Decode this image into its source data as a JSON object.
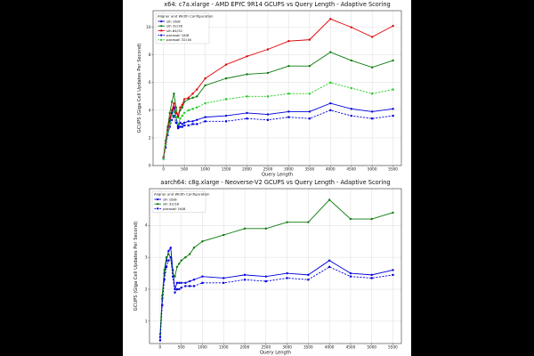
{
  "chart_data": [
    {
      "type": "line",
      "title": "x64: c7a.xlarge - AMD EPYC 9R14 GCUPS vs Query Length - Adaptive Scoring",
      "xlabel": "Query Length",
      "ylabel": "GCUPS (Giga Cell Updates Per Second)",
      "xlim": [
        -250,
        5700
      ],
      "ylim": [
        0,
        11.2
      ],
      "xticks": [
        0,
        500,
        1000,
        1500,
        2000,
        2500,
        3000,
        3500,
        4000,
        4500,
        5000,
        5500
      ],
      "yticks": [
        0,
        2,
        4,
        6,
        8,
        10
      ],
      "grid": true,
      "legend_title": "Aligner and Width Configuration",
      "legend_location": "top-left",
      "x": [
        1,
        50,
        100,
        150,
        200,
        250,
        300,
        350,
        400,
        450,
        500,
        600,
        700,
        800,
        1000,
        1500,
        2000,
        2500,
        3000,
        3500,
        4000,
        4500,
        5000,
        5500
      ],
      "series": [
        {
          "name": "sih 16/8",
          "color": "#0000dd",
          "style": "solid",
          "marker": "circle",
          "values": [
            0.5,
            1.5,
            2.5,
            3.2,
            3.8,
            4.2,
            3.5,
            2.8,
            3.1,
            3.0,
            3.1,
            3.2,
            3.2,
            3.3,
            3.5,
            3.6,
            3.8,
            3.7,
            3.9,
            3.9,
            4.5,
            4.1,
            3.9,
            4.1
          ]
        },
        {
          "name": "sih 32/16",
          "color": "#0a7a0a",
          "style": "solid",
          "marker": "circle",
          "values": [
            0.6,
            1.8,
            2.8,
            3.8,
            4.6,
            5.2,
            4.2,
            3.5,
            4.0,
            4.2,
            4.6,
            4.8,
            4.9,
            5.0,
            5.8,
            6.3,
            6.6,
            6.7,
            7.2,
            7.2,
            8.2,
            7.6,
            7.1,
            7.6
          ]
        },
        {
          "name": "sih 64/32",
          "color": "#e00000",
          "style": "solid",
          "marker": "circle",
          "values": [
            0.6,
            1.6,
            2.6,
            3.4,
            4.0,
            4.5,
            3.8,
            3.6,
            4.2,
            4.4,
            4.8,
            4.9,
            5.2,
            5.5,
            6.3,
            7.3,
            7.9,
            8.4,
            9.0,
            9.1,
            10.6,
            10.0,
            9.3,
            10.1
          ]
        },
        {
          "name": "parasail 16/8",
          "color": "#0000dd",
          "style": "dashed",
          "marker": "square",
          "values": [
            0.5,
            1.3,
            2.2,
            2.8,
            3.3,
            3.6,
            3.1,
            2.7,
            2.8,
            2.8,
            2.9,
            2.9,
            3.0,
            3.0,
            3.2,
            3.2,
            3.4,
            3.3,
            3.5,
            3.4,
            4.0,
            3.6,
            3.4,
            3.6
          ]
        },
        {
          "name": "parasail 32/16",
          "color": "#22cc22",
          "style": "dashed",
          "marker": "square",
          "values": [
            0.5,
            1.5,
            2.4,
            3.0,
            3.6,
            3.9,
            3.5,
            3.0,
            3.4,
            3.6,
            3.8,
            4.0,
            4.1,
            4.2,
            4.5,
            4.8,
            5.0,
            5.0,
            5.2,
            5.2,
            6.0,
            5.6,
            5.2,
            5.5
          ]
        }
      ]
    },
    {
      "type": "line",
      "title": "aarch64: c8g.xlarge - Neoverse-V2 GCUPS vs Query Length - Adaptive Scoring",
      "xlabel": "Query Length",
      "ylabel": "GCUPS (Giga Cell Updates Per Second)",
      "xlim": [
        -250,
        5700
      ],
      "ylim": [
        0.3,
        5.15
      ],
      "xticks": [
        0,
        500,
        1000,
        1500,
        2000,
        2500,
        3000,
        3500,
        4000,
        4500,
        5000,
        5500
      ],
      "yticks": [
        1,
        2,
        3,
        4
      ],
      "grid": true,
      "legend_title": "Aligner and Width Configuration",
      "legend_location": "top-left",
      "x": [
        1,
        50,
        100,
        150,
        200,
        250,
        300,
        350,
        400,
        450,
        500,
        600,
        700,
        800,
        1000,
        1500,
        2000,
        2500,
        3000,
        3500,
        4000,
        4500,
        5000,
        5500
      ],
      "series": [
        {
          "name": "sih 16/8",
          "color": "#0000dd",
          "style": "solid",
          "marker": "circle",
          "values": [
            0.5,
            1.7,
            2.5,
            2.9,
            3.2,
            3.3,
            2.6,
            2.0,
            2.2,
            2.2,
            2.2,
            2.2,
            2.25,
            2.3,
            2.4,
            2.35,
            2.45,
            2.4,
            2.5,
            2.45,
            2.9,
            2.5,
            2.45,
            2.6
          ]
        },
        {
          "name": "sih 32/16",
          "color": "#0a7a0a",
          "style": "solid",
          "marker": "circle",
          "values": [
            0.6,
            1.8,
            2.6,
            3.0,
            3.1,
            3.0,
            2.5,
            2.4,
            2.7,
            2.8,
            2.9,
            3.0,
            3.1,
            3.3,
            3.5,
            3.7,
            3.9,
            3.9,
            4.1,
            4.1,
            4.8,
            4.2,
            4.2,
            4.4
          ]
        },
        {
          "name": "parasail 16/8",
          "color": "#0000dd",
          "style": "dashed",
          "marker": "square",
          "values": [
            0.4,
            1.5,
            2.3,
            2.7,
            2.9,
            3.0,
            2.4,
            1.9,
            2.0,
            2.0,
            2.05,
            2.1,
            2.1,
            2.1,
            2.2,
            2.2,
            2.3,
            2.25,
            2.35,
            2.3,
            2.7,
            2.4,
            2.35,
            2.45
          ]
        }
      ]
    }
  ]
}
